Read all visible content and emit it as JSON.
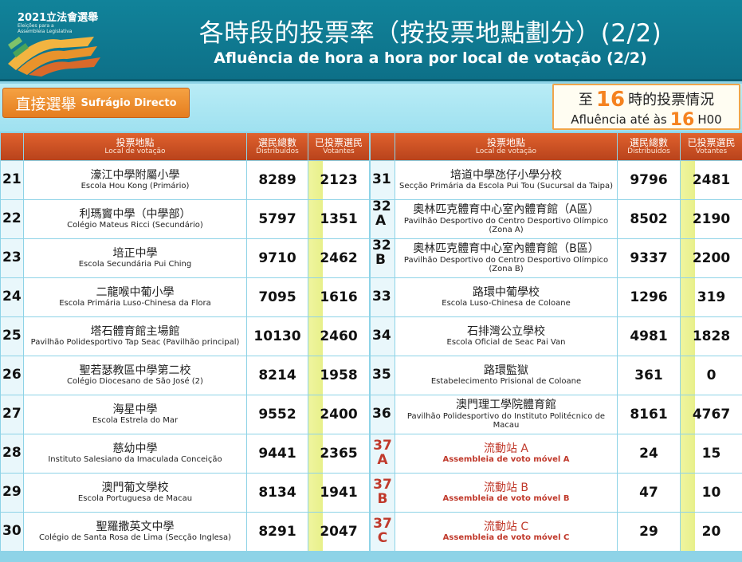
{
  "header": {
    "logo_year_title": "2021立法會選舉",
    "logo_sub1": "Eleições para a",
    "logo_sub2": "Assembleia Legislativa",
    "title_zh": "各時段的投票率（按投票地點劃分）(2/2)",
    "title_pt": "Afluência de hora a hora por local de votação (2/2)"
  },
  "election_type": {
    "zh": "直接選舉",
    "pt": "Sufrágio Directo"
  },
  "time_info": {
    "line1_prefix": "至",
    "hour": "16",
    "line1_suffix": "時的投票情況",
    "line2_prefix": "Afluência até às",
    "line2_suffix": "H00"
  },
  "table_headers": {
    "location_zh": "投票地點",
    "location_pt": "Local de votação",
    "voters_zh": "選民總數",
    "voters_pt": "Distribuídos",
    "voted_zh": "已投票選民",
    "voted_pt": "Votantes"
  },
  "colors": {
    "header_bg": "#11839a",
    "accent_orange": "#f5821f",
    "table_header": "#c94e22",
    "mobile_station_red": "#c0392b",
    "background": "#8ed3e7"
  },
  "left_rows": [
    {
      "num": "21",
      "zh": "濠江中學附屬小學",
      "pt": "Escola Hou Kong (Primário)",
      "voters": "8289",
      "voted": "2123"
    },
    {
      "num": "22",
      "zh": "利瑪竇中學（中學部）",
      "pt": "Colégio Mateus Ricci (Secundário)",
      "voters": "5797",
      "voted": "1351"
    },
    {
      "num": "23",
      "zh": "培正中學",
      "pt": "Escola Secundária Pui Ching",
      "voters": "9710",
      "voted": "2462"
    },
    {
      "num": "24",
      "zh": "二龍喉中葡小學",
      "pt": "Escola Primária Luso-Chinesa da Flora",
      "voters": "7095",
      "voted": "1616"
    },
    {
      "num": "25",
      "zh": "塔石體育館主場館",
      "pt": "Pavilhão Polidesportivo Tap Seac (Pavilhão principal)",
      "voters": "10130",
      "voted": "2460"
    },
    {
      "num": "26",
      "zh": "聖若瑟教區中學第二校",
      "pt": "Colégio Diocesano de São José (2)",
      "voters": "8214",
      "voted": "1958"
    },
    {
      "num": "27",
      "zh": "海星中學",
      "pt": "Escola Estrela do Mar",
      "voters": "9552",
      "voted": "2400"
    },
    {
      "num": "28",
      "zh": "慈幼中學",
      "pt": "Instituto Salesiano da Imaculada Conceição",
      "voters": "9441",
      "voted": "2365"
    },
    {
      "num": "29",
      "zh": "澳門葡文學校",
      "pt": "Escola Portuguesa de Macau",
      "voters": "8134",
      "voted": "1941"
    },
    {
      "num": "30",
      "zh": "聖羅撒英文中學",
      "pt": "Colégio de Santa Rosa de Lima (Secção Inglesa)",
      "voters": "8291",
      "voted": "2047"
    }
  ],
  "right_rows": [
    {
      "num": "31",
      "num2": "",
      "mobile": false,
      "zh": "培道中學氹仔小學分校",
      "pt": "Secção Primária da Escola Pui Tou (Sucursal da Taipa)",
      "voters": "9796",
      "voted": "2481"
    },
    {
      "num": "32",
      "num2": "A",
      "mobile": false,
      "zh": "奧林匹克體育中心室內體育館（A區）",
      "pt": "Pavilhão Desportivo do Centro Desportivo Olímpico (Zona A)",
      "voters": "8502",
      "voted": "2190"
    },
    {
      "num": "32",
      "num2": "B",
      "mobile": false,
      "zh": "奧林匹克體育中心室內體育館（B區）",
      "pt": "Pavilhão Desportivo do Centro Desportivo Olímpico (Zona B)",
      "voters": "9337",
      "voted": "2200"
    },
    {
      "num": "33",
      "num2": "",
      "mobile": false,
      "zh": "路環中葡學校",
      "pt": "Escola Luso-Chinesa de Coloane",
      "voters": "1296",
      "voted": "319"
    },
    {
      "num": "34",
      "num2": "",
      "mobile": false,
      "zh": "石排灣公立學校",
      "pt": "Escola Oficial de Seac Pai Van",
      "voters": "4981",
      "voted": "1828"
    },
    {
      "num": "35",
      "num2": "",
      "mobile": false,
      "zh": "路環監獄",
      "pt": "Estabelecimento Prisional de Coloane",
      "voters": "361",
      "voted": "0"
    },
    {
      "num": "36",
      "num2": "",
      "mobile": false,
      "zh": "澳門理工學院體育館",
      "pt": "Pavilhão Polidesportivo do Instituto Politécnico de Macau",
      "voters": "8161",
      "voted": "4767"
    },
    {
      "num": "37",
      "num2": "A",
      "mobile": true,
      "zh": "流動站 A",
      "pt": "Assembleia de voto móvel A",
      "voters": "24",
      "voted": "15"
    },
    {
      "num": "37",
      "num2": "B",
      "mobile": true,
      "zh": "流動站 B",
      "pt": "Assembleia de voto móvel B",
      "voters": "47",
      "voted": "10"
    },
    {
      "num": "37",
      "num2": "C",
      "mobile": true,
      "zh": "流動站 C",
      "pt": "Assembleia de voto móvel C",
      "voters": "29",
      "voted": "20"
    }
  ]
}
